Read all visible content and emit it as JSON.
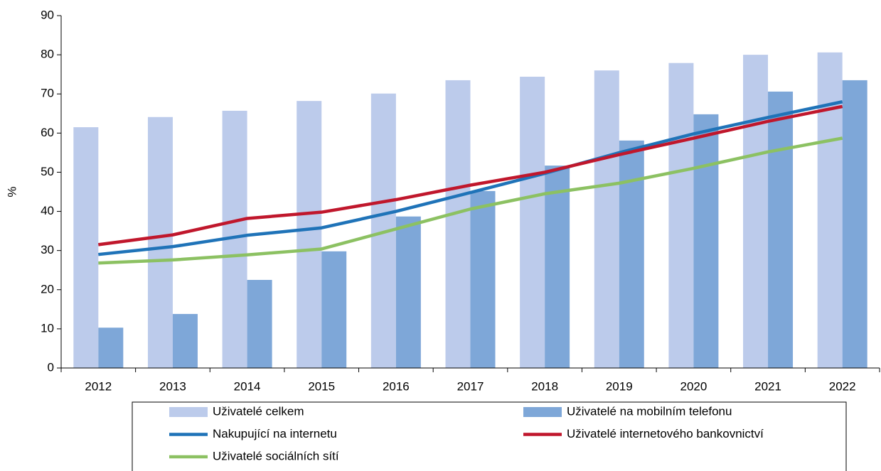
{
  "chart_data": {
    "type": "bar",
    "y_label": "%",
    "categories": [
      "2012",
      "2013",
      "2014",
      "2015",
      "2016",
      "2017",
      "2018",
      "2019",
      "2020",
      "2021",
      "2022"
    ],
    "series": [
      {
        "name": "Uživatelé celkem",
        "type": "bar",
        "color": "#bccbeb",
        "values": [
          61.5,
          64.1,
          65.7,
          68.2,
          70.1,
          73.5,
          74.4,
          76.0,
          77.9,
          80.0,
          80.6
        ]
      },
      {
        "name": "Uživatelé na mobilním telefonu",
        "type": "bar",
        "color": "#7ea7d8",
        "values": [
          10.3,
          13.8,
          22.5,
          29.8,
          38.7,
          45.2,
          51.7,
          58.1,
          64.8,
          70.6,
          73.5
        ]
      },
      {
        "name": "Nakupující na internetu",
        "type": "line",
        "color": "#1f73b8",
        "values": [
          29.0,
          31.0,
          33.9,
          35.8,
          40.0,
          44.8,
          49.7,
          55.0,
          59.8,
          64.0,
          68.0
        ]
      },
      {
        "name": "Uživatelé internetového bankovnictví",
        "type": "line",
        "color": "#c0172c",
        "values": [
          31.5,
          34.0,
          38.2,
          39.8,
          43.0,
          46.7,
          50.0,
          54.5,
          58.7,
          63.0,
          66.8
        ]
      },
      {
        "name": "Uživatelé sociálních sítí",
        "type": "line",
        "color": "#8cc162",
        "values": [
          26.8,
          27.6,
          28.9,
          30.4,
          35.5,
          40.6,
          44.5,
          47.2,
          51.0,
          55.2,
          58.7
        ]
      }
    ],
    "ylim": [
      0,
      90
    ],
    "yticks": [
      0,
      10,
      20,
      30,
      40,
      50,
      60,
      70,
      80,
      90
    ],
    "grid": false
  }
}
